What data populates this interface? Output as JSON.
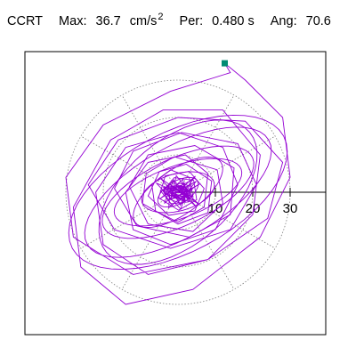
{
  "header": {
    "station": "CCRT",
    "max_label": "Max:",
    "max_value": "36.7",
    "max_unit": "cm/s",
    "max_unit_exp": "2",
    "per_label": "Per:",
    "per_value": "0.480 s",
    "ang_label": "Ang:",
    "ang_value": "70.6"
  },
  "colors": {
    "trace": "#9400d3",
    "marker": "#008b74",
    "grid": "#808080",
    "axis": "#000000",
    "frame": "#000000"
  },
  "chart_data": {
    "type": "scatter",
    "description_free": true,
    "polar_grid": true,
    "radial_ticks": [
      10,
      20,
      30
    ],
    "rings": [
      10,
      20,
      30
    ],
    "spokes_every_deg": 30,
    "radius_max": 36.7,
    "peak_point": {
      "x": 12.5,
      "y": 34.5
    },
    "max_amplitude": 36.7,
    "period_s": 0.48,
    "angle_deg": 70.6,
    "trace_style": "particle-motion",
    "trace_points": [
      [
        0,
        0
      ],
      [
        1.2,
        0.8
      ],
      [
        2.5,
        -0.4
      ],
      [
        1.0,
        -1.8
      ],
      [
        -1.5,
        -1.0
      ],
      [
        -2.2,
        0.9
      ],
      [
        0.5,
        2.4
      ],
      [
        3.5,
        1.6
      ],
      [
        2.8,
        -2.6
      ],
      [
        -1.9,
        -3.1
      ],
      [
        -4.0,
        0.3
      ],
      [
        -1.0,
        3.9
      ],
      [
        4.2,
        3.2
      ],
      [
        5.0,
        -2.0
      ],
      [
        0.2,
        -4.8
      ],
      [
        -5.2,
        -1.5
      ],
      [
        -3.4,
        4.4
      ],
      [
        3.0,
        5.6
      ],
      [
        7.0,
        1.0
      ],
      [
        4.5,
        -5.0
      ],
      [
        -2.5,
        -6.2
      ],
      [
        -8.0,
        -1.0
      ],
      [
        -5.0,
        5.5
      ],
      [
        2.2,
        7.5
      ],
      [
        9.0,
        3.0
      ],
      [
        8.0,
        -5.5
      ],
      [
        0.0,
        -8.5
      ],
      [
        -9.5,
        -3.0
      ],
      [
        -8.5,
        5.0
      ],
      [
        -1.0,
        9.5
      ],
      [
        10.5,
        6.0
      ],
      [
        12.0,
        -3.0
      ],
      [
        4.0,
        -10.5
      ],
      [
        -8.0,
        -8.5
      ],
      [
        -13.0,
        1.5
      ],
      [
        -8.0,
        10.0
      ],
      [
        4.5,
        12.5
      ],
      [
        15.0,
        6.5
      ],
      [
        14.0,
        -6.0
      ],
      [
        3.0,
        -12.0
      ],
      [
        -11.0,
        -9.0
      ],
      [
        -17.0,
        1.0
      ],
      [
        -12.0,
        11.0
      ],
      [
        1.0,
        16.0
      ],
      [
        16.0,
        13.0
      ],
      [
        21.0,
        2.0
      ],
      [
        14.0,
        -10.0
      ],
      [
        -2.0,
        -15.0
      ],
      [
        -17.0,
        -10.0
      ],
      [
        -24.0,
        2.0
      ],
      [
        -16.0,
        14.0
      ],
      [
        0.0,
        20.0
      ],
      [
        18.0,
        19.0
      ],
      [
        28.0,
        8.0
      ],
      [
        24.0,
        -7.0
      ],
      [
        8.0,
        -18.0
      ],
      [
        -12.0,
        -22.0
      ],
      [
        -28.0,
        -12.0
      ],
      [
        -30.0,
        4.0
      ],
      [
        -20.0,
        18.0
      ],
      [
        -2.0,
        27.0
      ],
      [
        14.0,
        32.0
      ],
      [
        12.5,
        34.5
      ],
      [
        18.0,
        30.0
      ],
      [
        28.0,
        20.0
      ],
      [
        30.0,
        4.0
      ],
      [
        22.0,
        -12.0
      ],
      [
        4.0,
        -26.0
      ],
      [
        -14.0,
        -30.0
      ],
      [
        -26.0,
        -20.0
      ],
      [
        -28.0,
        -4.0
      ],
      [
        -18.0,
        14.0
      ],
      [
        -4.0,
        22.0
      ],
      [
        12.0,
        22.0
      ],
      [
        22.0,
        10.0
      ],
      [
        20.0,
        -6.0
      ],
      [
        8.0,
        -18.0
      ],
      [
        -8.0,
        -22.0
      ],
      [
        -20.0,
        -14.0
      ],
      [
        -22.0,
        0.0
      ],
      [
        -14.0,
        12.0
      ],
      [
        0.0,
        16.0
      ],
      [
        12.0,
        12.0
      ],
      [
        16.0,
        2.0
      ],
      [
        10.0,
        -10.0
      ],
      [
        -2.0,
        -14.0
      ],
      [
        -12.0,
        -10.0
      ],
      [
        -14.0,
        0.0
      ],
      [
        -8.0,
        8.0
      ],
      [
        2.0,
        10.0
      ],
      [
        8.0,
        5.0
      ],
      [
        7.0,
        -4.0
      ],
      [
        0.0,
        -8.0
      ],
      [
        -6.0,
        -5.0
      ],
      [
        -7.0,
        2.0
      ],
      [
        -2.0,
        6.0
      ],
      [
        3.0,
        4.0
      ],
      [
        4.0,
        -1.0
      ],
      [
        1.0,
        -3.0
      ],
      [
        -2.0,
        -2.0
      ],
      [
        -1.0,
        1.0
      ],
      [
        0.5,
        0.5
      ]
    ]
  }
}
